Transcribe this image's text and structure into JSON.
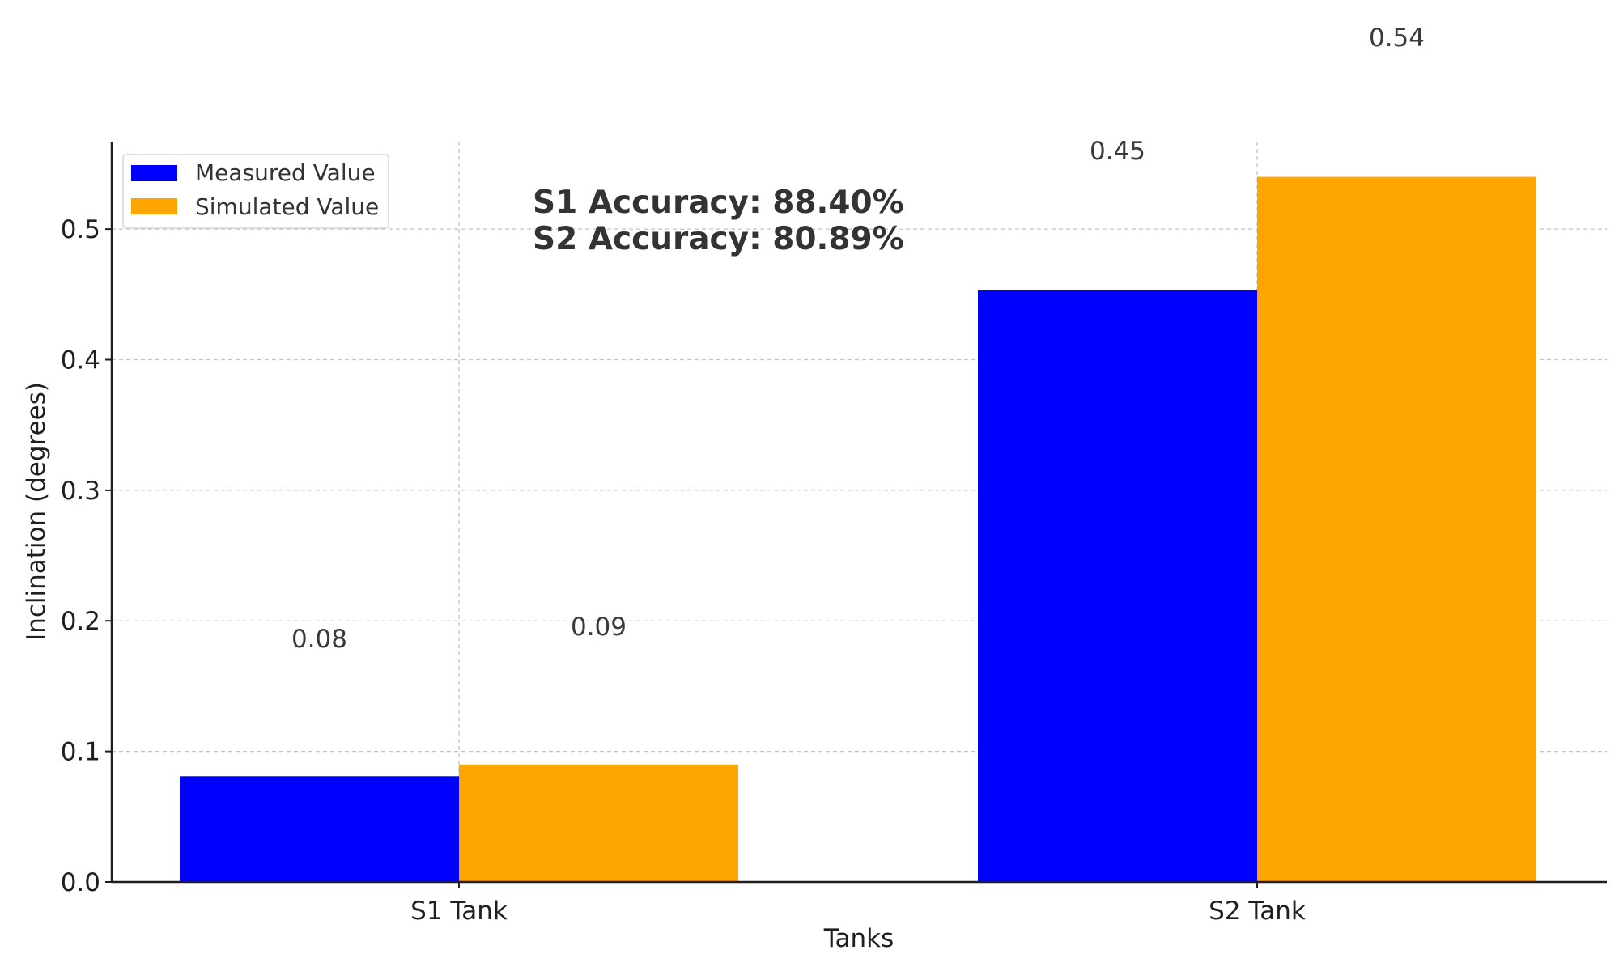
{
  "chart_data": {
    "type": "bar",
    "categories": [
      "S1 Tank",
      "S2 Tank"
    ],
    "series": [
      {
        "name": "Measured Value",
        "values": [
          0.081,
          0.453
        ],
        "labels": [
          "0.08",
          "0.45"
        ],
        "color": "#0000ff"
      },
      {
        "name": "Simulated Value",
        "values": [
          0.09,
          0.54
        ],
        "labels": [
          "0.09",
          "0.54"
        ],
        "color": "#ffa500"
      }
    ],
    "xlabel": "Tanks",
    "ylabel": "Inclination (degrees)",
    "ylim": [
      0,
      0.567
    ],
    "yticks": [
      0.0,
      0.1,
      0.2,
      0.3,
      0.4,
      0.5
    ],
    "ytick_labels": [
      "0.0",
      "0.1",
      "0.2",
      "0.3",
      "0.4",
      "0.5"
    ],
    "annotations": [
      "S1 Accuracy: 88.40%",
      "S2 Accuracy: 80.89%"
    ],
    "grid": true,
    "legend_position": "upper-left"
  }
}
